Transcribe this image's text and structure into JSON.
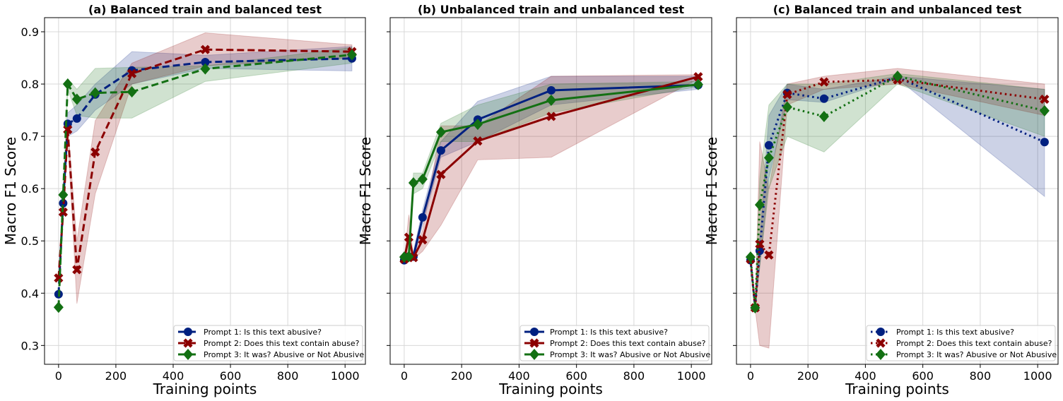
{
  "chart_data": [
    {
      "type": "line",
      "title": "(a) Balanced train and balanced test",
      "xlabel": "Training points",
      "ylabel": "Macro F1 Score",
      "linestyle": "dashed",
      "x": [
        0,
        16,
        32,
        64,
        128,
        256,
        512,
        1024
      ],
      "xlim": [
        -49,
        1071
      ],
      "ylim": [
        0.264,
        0.927
      ],
      "xticks": [
        0,
        200,
        400,
        600,
        800,
        1000
      ],
      "yticks": [
        0.3,
        0.4,
        0.5,
        0.6,
        0.7,
        0.8,
        0.9
      ],
      "grid": true,
      "legend": "bottom-right",
      "series": [
        {
          "name": "Prompt 1: Is this text abusive?",
          "color": "#002080",
          "marker": "circle",
          "values": [
            0.398,
            0.572,
            0.724,
            0.734,
            0.78,
            0.826,
            0.842,
            0.849
          ],
          "lower": [
            0.398,
            0.572,
            0.7,
            0.71,
            0.75,
            0.8,
            0.83,
            0.825
          ],
          "upper": [
            0.398,
            0.572,
            0.745,
            0.76,
            0.8,
            0.862,
            0.855,
            0.872
          ]
        },
        {
          "name": "Prompt 2: Does this text contain abuse?",
          "color": "#8b0000",
          "marker": "x",
          "values": [
            0.429,
            0.555,
            0.713,
            0.445,
            0.67,
            0.82,
            0.866,
            0.862
          ],
          "lower": [
            0.429,
            0.55,
            0.7,
            0.38,
            0.59,
            0.8,
            0.835,
            0.85
          ],
          "upper": [
            0.429,
            0.56,
            0.72,
            0.5,
            0.73,
            0.84,
            0.898,
            0.875
          ]
        },
        {
          "name": "Prompt 3: It was? Abusive or Not Abusive",
          "color": "#137013",
          "marker": "diamond",
          "values": [
            0.373,
            0.588,
            0.8,
            0.771,
            0.783,
            0.785,
            0.829,
            0.856
          ],
          "lower": [
            0.373,
            0.588,
            0.79,
            0.74,
            0.735,
            0.735,
            0.805,
            0.84
          ],
          "upper": [
            0.373,
            0.588,
            0.81,
            0.79,
            0.83,
            0.832,
            0.835,
            0.87
          ]
        }
      ]
    },
    {
      "type": "line",
      "title": "(b) Unbalanced train and unbalanced test",
      "xlabel": "Training points",
      "ylabel": "Macro F1 Score",
      "linestyle": "solid",
      "x": [
        0,
        16,
        32,
        64,
        128,
        256,
        512,
        1024
      ],
      "xlim": [
        -49,
        1071
      ],
      "ylim": [
        0.264,
        0.927
      ],
      "xticks": [
        0,
        200,
        400,
        600,
        800,
        1000
      ],
      "yticks": [
        0.3,
        0.4,
        0.5,
        0.6,
        0.7,
        0.8,
        0.9
      ],
      "grid": true,
      "legend": "bottom-right",
      "series": [
        {
          "name": "Prompt 1: Is this text abusive?",
          "color": "#002080",
          "marker": "circle",
          "values": [
            0.463,
            0.47,
            0.47,
            0.545,
            0.673,
            0.732,
            0.788,
            0.798
          ],
          "lower": [
            0.463,
            0.465,
            0.465,
            0.53,
            0.66,
            0.69,
            0.76,
            0.79
          ],
          "upper": [
            0.463,
            0.475,
            0.48,
            0.56,
            0.69,
            0.767,
            0.815,
            0.815
          ]
        },
        {
          "name": "Prompt 2: Does this text contain abuse?",
          "color": "#8b0000",
          "marker": "x",
          "values": [
            0.465,
            0.507,
            0.468,
            0.502,
            0.627,
            0.691,
            0.738,
            0.814
          ],
          "lower": [
            0.465,
            0.48,
            0.465,
            0.48,
            0.53,
            0.655,
            0.66,
            0.81
          ],
          "upper": [
            0.465,
            0.55,
            0.47,
            0.52,
            0.72,
            0.72,
            0.815,
            0.818
          ]
        },
        {
          "name": "Prompt 3: It was? Abusive or Not Abusive",
          "color": "#137013",
          "marker": "diamond",
          "values": [
            0.469,
            0.47,
            0.611,
            0.618,
            0.708,
            0.723,
            0.769,
            0.799
          ],
          "lower": [
            0.469,
            0.47,
            0.59,
            0.6,
            0.69,
            0.69,
            0.745,
            0.795
          ],
          "upper": [
            0.469,
            0.47,
            0.63,
            0.63,
            0.725,
            0.76,
            0.8,
            0.805
          ]
        }
      ]
    },
    {
      "type": "line",
      "title": "(c) Balanced train and unbalanced test",
      "xlabel": "Training points",
      "ylabel": "Macro F1 Score",
      "linestyle": "dotted",
      "x": [
        0,
        16,
        32,
        64,
        128,
        256,
        512,
        1024
      ],
      "xlim": [
        -49,
        1071
      ],
      "ylim": [
        0.264,
        0.927
      ],
      "xticks": [
        0,
        200,
        400,
        600,
        800,
        1000
      ],
      "yticks": [
        0.3,
        0.4,
        0.5,
        0.6,
        0.7,
        0.8,
        0.9
      ],
      "grid": true,
      "legend": "bottom-right",
      "series": [
        {
          "name": "Prompt 1: Is this text abusive?",
          "color": "#002080",
          "marker": "circle",
          "values": [
            0.463,
            0.372,
            0.481,
            0.683,
            0.783,
            0.772,
            0.813,
            0.689
          ],
          "lower": [
            0.463,
            0.37,
            0.45,
            0.62,
            0.77,
            0.765,
            0.81,
            0.585
          ],
          "upper": [
            0.463,
            0.375,
            0.5,
            0.74,
            0.8,
            0.79,
            0.815,
            0.79
          ]
        },
        {
          "name": "Prompt 2: Does this text contain abuse?",
          "color": "#8b0000",
          "marker": "x",
          "values": [
            0.465,
            0.372,
            0.494,
            0.473,
            0.78,
            0.804,
            0.808,
            0.771
          ],
          "lower": [
            0.465,
            0.37,
            0.3,
            0.295,
            0.76,
            0.79,
            0.8,
            0.74
          ],
          "upper": [
            0.465,
            0.375,
            0.69,
            0.6,
            0.8,
            0.815,
            0.83,
            0.8
          ]
        },
        {
          "name": "Prompt 3: It was? Abusive or Not Abusive",
          "color": "#137013",
          "marker": "diamond",
          "values": [
            0.469,
            0.372,
            0.569,
            0.659,
            0.756,
            0.738,
            0.815,
            0.749
          ],
          "lower": [
            0.469,
            0.37,
            0.45,
            0.6,
            0.7,
            0.67,
            0.8,
            0.7
          ],
          "upper": [
            0.469,
            0.375,
            0.62,
            0.76,
            0.8,
            0.8,
            0.82,
            0.79
          ]
        }
      ]
    }
  ]
}
